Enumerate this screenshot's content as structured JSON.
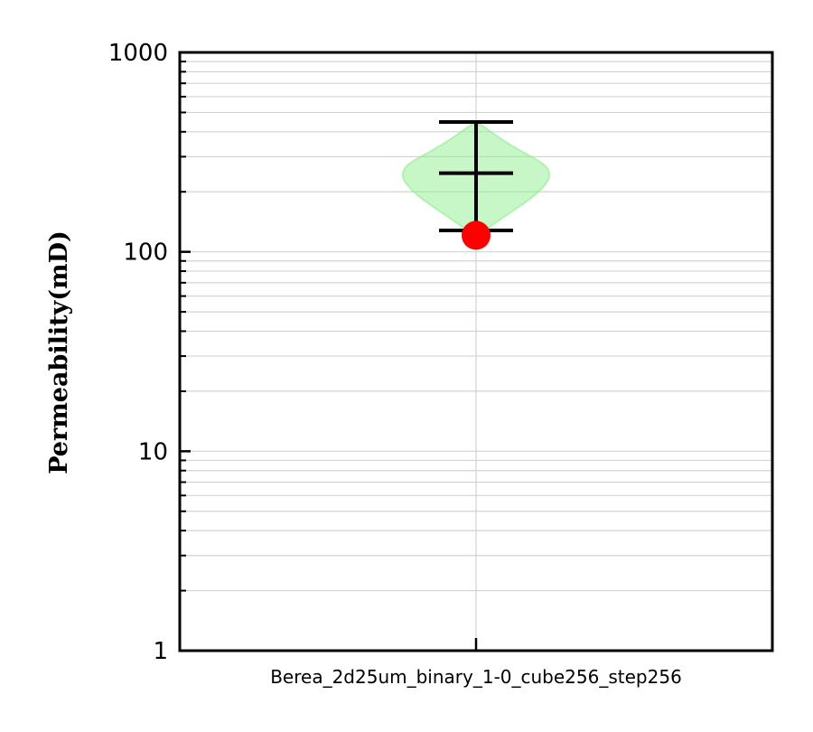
{
  "chart_data": {
    "type": "violin",
    "title": "",
    "xlabel": "",
    "ylabel": "Permeability(mD)",
    "yscale": "log",
    "ylim": [
      1,
      1000
    ],
    "y_ticks": [
      1,
      10,
      100,
      1000
    ],
    "y_tick_labels": [
      "1",
      "10",
      "100",
      "1000"
    ],
    "grid": true,
    "categories": [
      "Berea_2d25um_binary_1-0_cube256_step256"
    ],
    "violins": [
      {
        "category": "Berea_2d25um_binary_1-0_cube256_step256",
        "min": 128,
        "median": 248,
        "max": 448,
        "density_profile": [
          {
            "y": 120,
            "w": 0.05
          },
          {
            "y": 135,
            "w": 0.2
          },
          {
            "y": 150,
            "w": 0.38
          },
          {
            "y": 170,
            "w": 0.6
          },
          {
            "y": 195,
            "w": 0.82
          },
          {
            "y": 225,
            "w": 0.97
          },
          {
            "y": 245,
            "w": 1.0
          },
          {
            "y": 270,
            "w": 0.95
          },
          {
            "y": 300,
            "w": 0.75
          },
          {
            "y": 340,
            "w": 0.48
          },
          {
            "y": 390,
            "w": 0.24
          },
          {
            "y": 440,
            "w": 0.05
          }
        ],
        "fill_color": "#90ee90",
        "line_color": "#000000"
      }
    ],
    "points": [
      {
        "category": "Berea_2d25um_binary_1-0_cube256_step256",
        "y": 121,
        "color": "#ff0000"
      }
    ]
  }
}
